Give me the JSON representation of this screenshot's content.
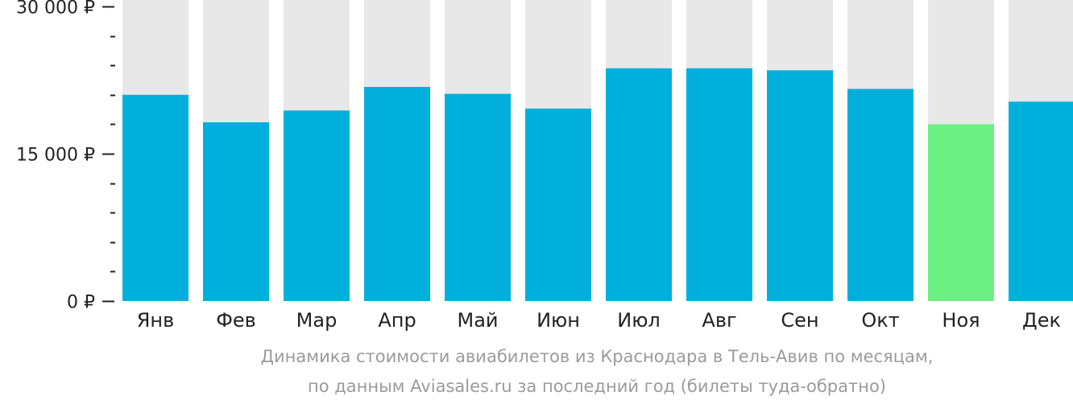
{
  "chart_data": {
    "type": "bar",
    "categories": [
      "Янв",
      "Фев",
      "Мар",
      "Апр",
      "Май",
      "Июн",
      "Июл",
      "Авг",
      "Сен",
      "Окт",
      "Ноя",
      "Дек"
    ],
    "values": [
      21000,
      18200,
      19400,
      21800,
      21100,
      19600,
      23700,
      23700,
      23500,
      21600,
      18000,
      20300
    ],
    "ylim": [
      0,
      30000
    ],
    "yticks": [
      {
        "value": 0,
        "label": "0 ₽"
      },
      {
        "value": 15000,
        "label": "15 000 ₽"
      },
      {
        "value": 30000,
        "label": "30 000 ₽"
      }
    ],
    "minor_tick_step": 3000,
    "highlight_index": 10,
    "colors": {
      "bar": "#00afdc",
      "highlight": "#6cef83",
      "background": "#e8e8e8",
      "axis": "#222222"
    }
  },
  "caption": {
    "line1": "Динамика стоимости авиабилетов из Краснодара в Тель-Авив по месяцам,",
    "line2": "по данным Aviasales.ru за последний год (билеты туда-обратно)"
  }
}
